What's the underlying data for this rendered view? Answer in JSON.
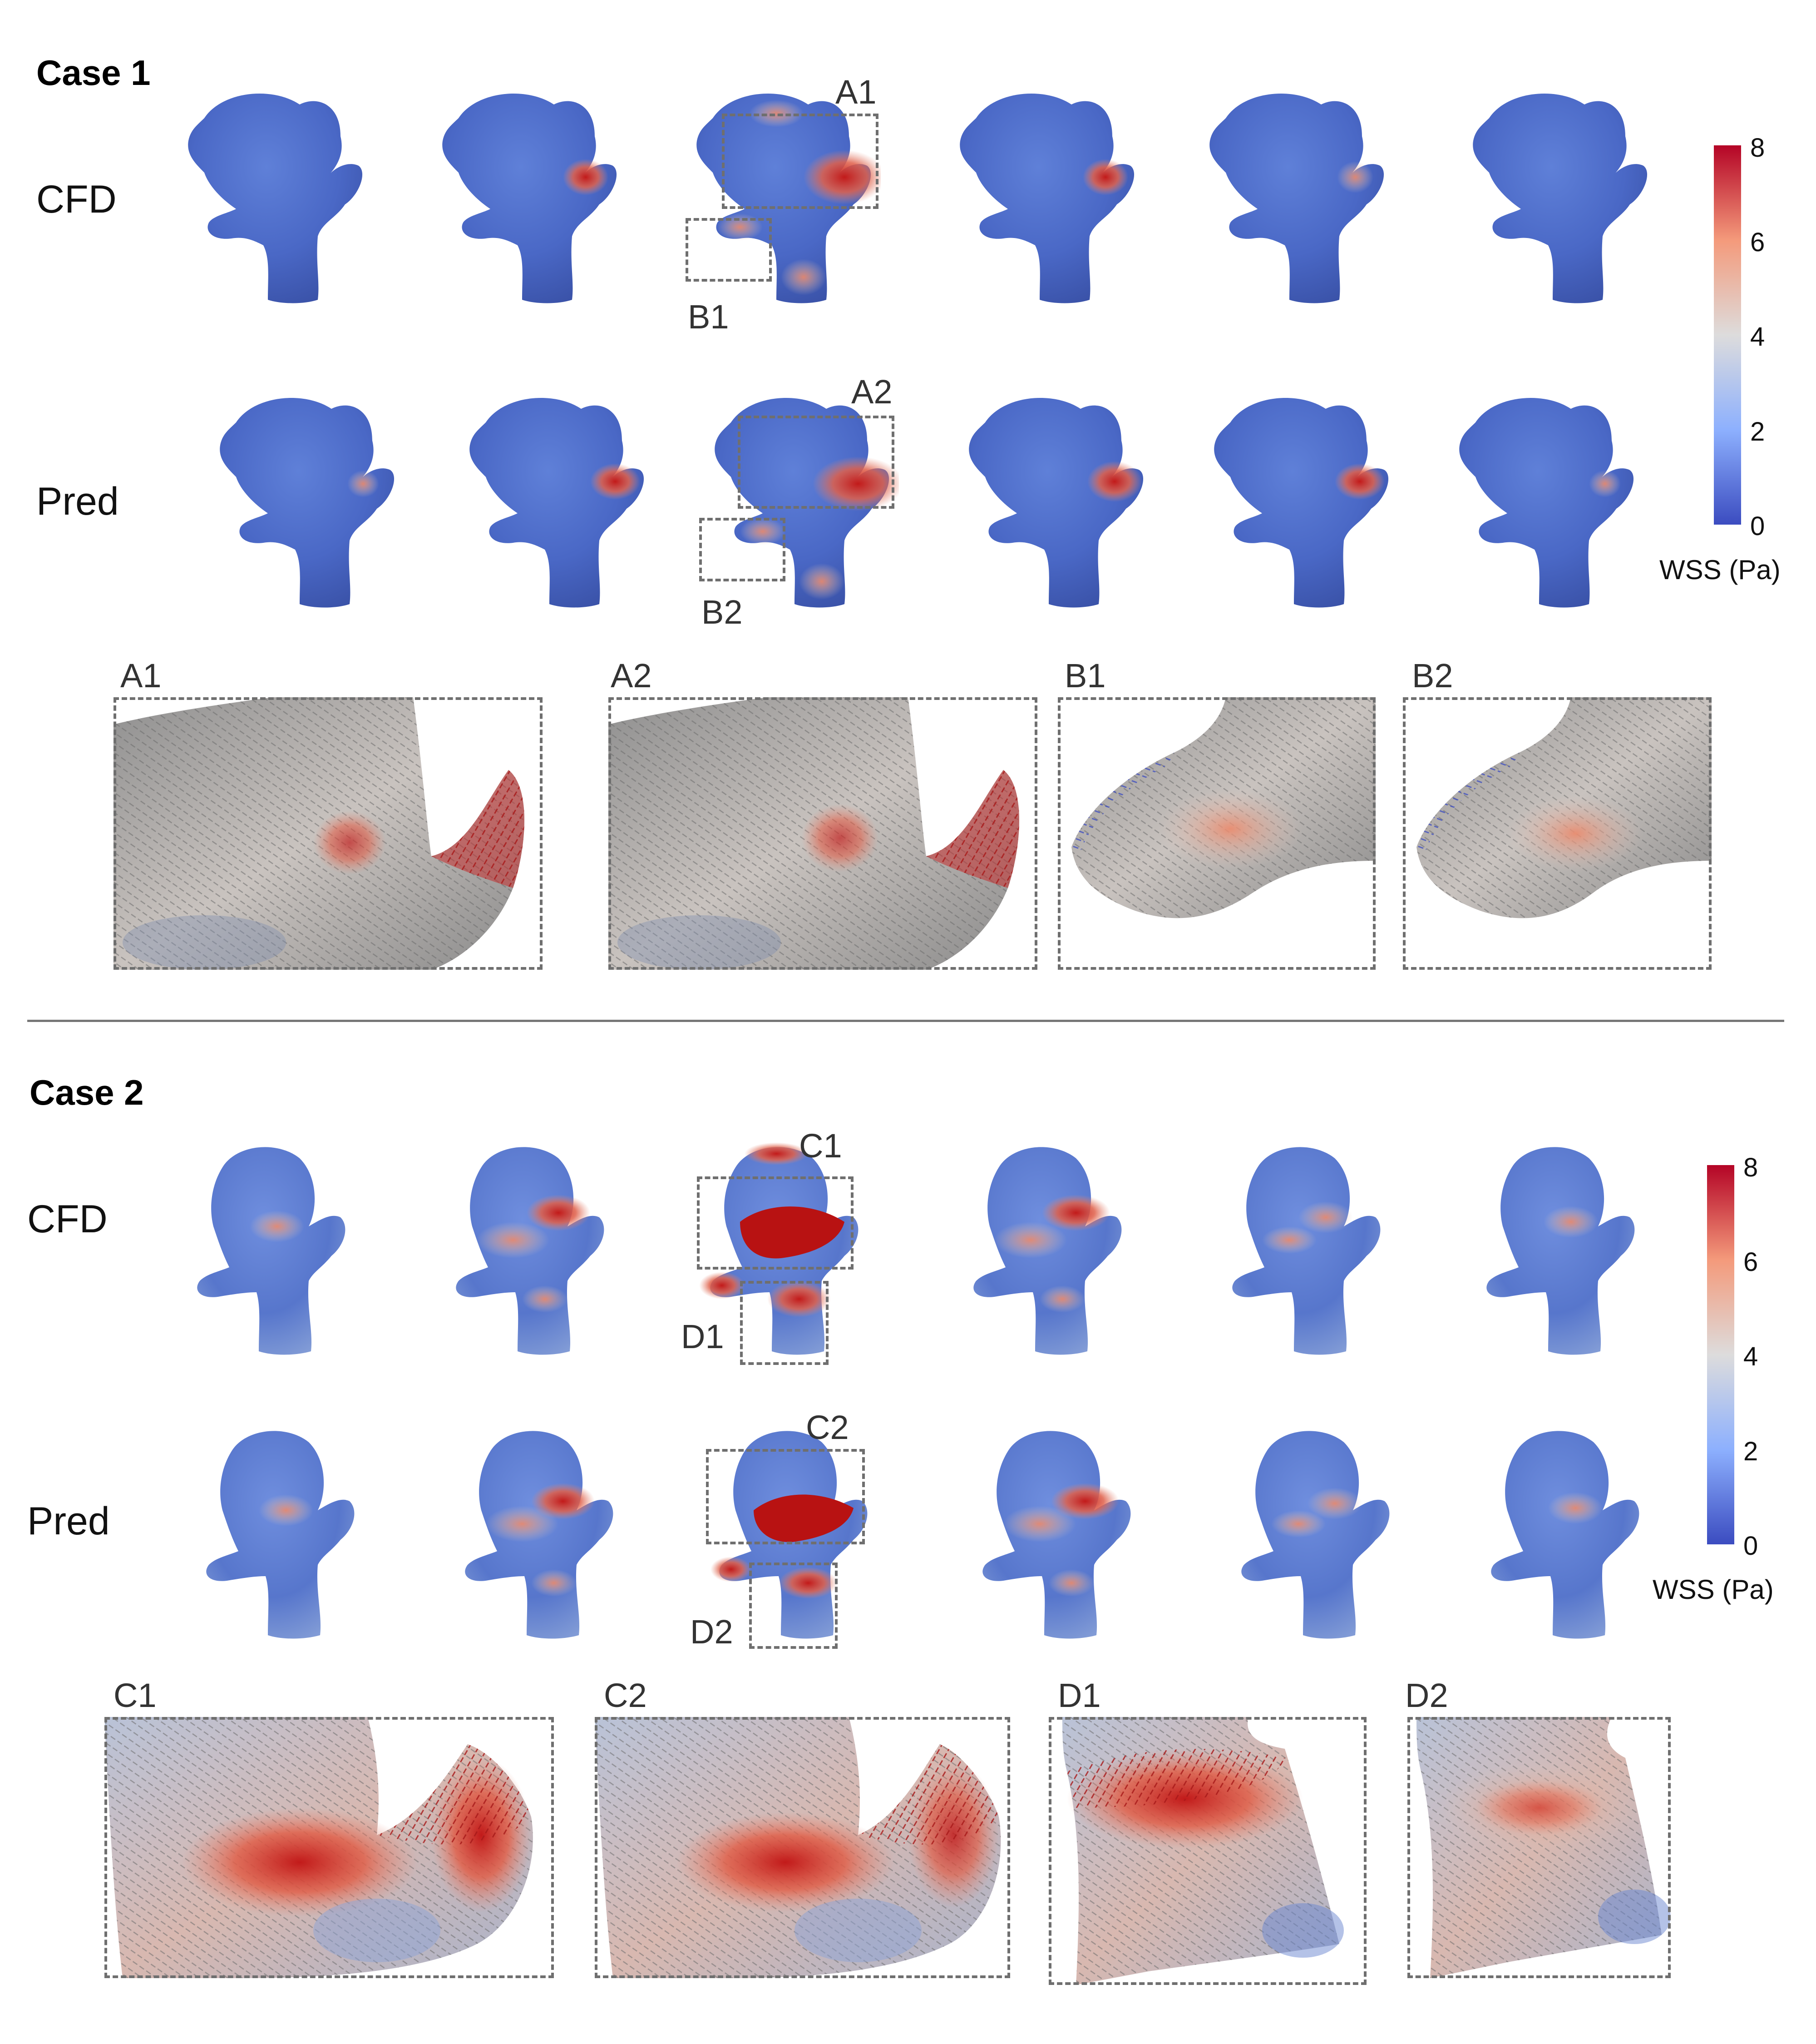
{
  "case1": {
    "title": "Case 1",
    "rows": [
      "CFD",
      "Pred"
    ],
    "regions": [
      "A1",
      "B1",
      "A2",
      "B2"
    ],
    "zoom_labels": [
      "A1",
      "A2",
      "B1",
      "B2"
    ]
  },
  "case2": {
    "title": "Case 2",
    "rows": [
      "CFD",
      "Pred"
    ],
    "regions": [
      "C1",
      "D1",
      "C2",
      "D2"
    ],
    "zoom_labels": [
      "C1",
      "C2",
      "D1",
      "D2"
    ]
  },
  "colorbar": {
    "title": "WSS (Pa)",
    "ticks": [
      "8",
      "6",
      "4",
      "2",
      "0"
    ],
    "range": [
      0,
      8
    ],
    "colors": [
      "#3b4cc0",
      "#8db0fe",
      "#dddcdc",
      "#f49a7b",
      "#b40426"
    ]
  }
}
